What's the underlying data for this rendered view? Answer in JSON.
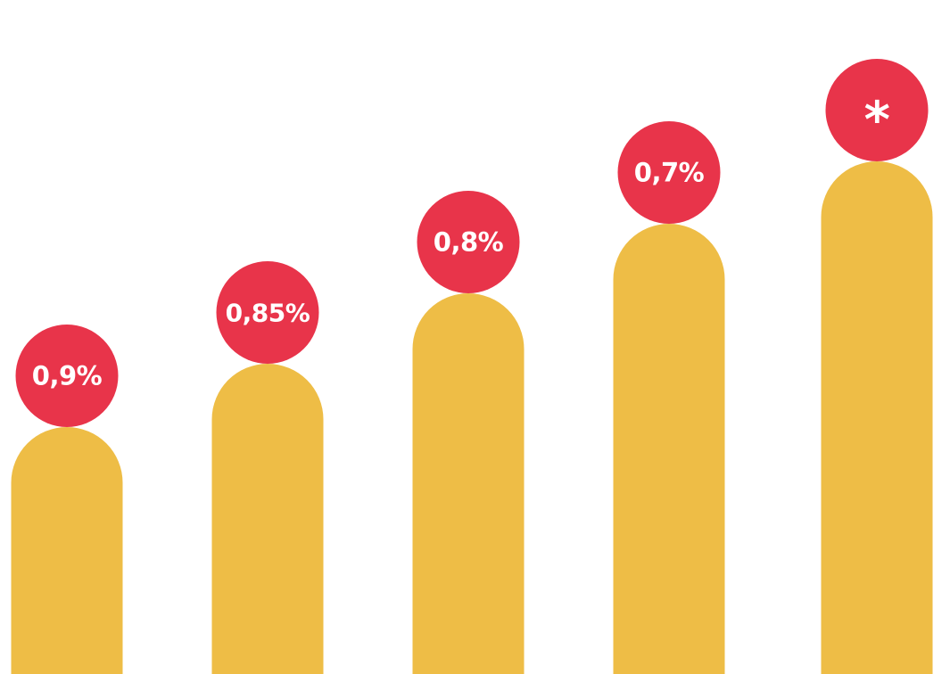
{
  "chart_data": {
    "type": "bar",
    "title": "",
    "xlabel": "",
    "ylabel": "",
    "categories": [
      "",
      "",
      "",
      "",
      ""
    ],
    "series": [
      {
        "values": [
          277,
          348,
          427,
          505,
          575
        ],
        "labels": [
          "0,9%",
          "0,85%",
          "0,8%",
          "0,7%",
          "*"
        ]
      }
    ],
    "ylim": [
      0,
      756
    ],
    "grid": false,
    "legend": "none",
    "colors": {
      "bar": "#EEBD46",
      "bubble": "#E8344A",
      "label_text": "#FFFFFF"
    }
  }
}
